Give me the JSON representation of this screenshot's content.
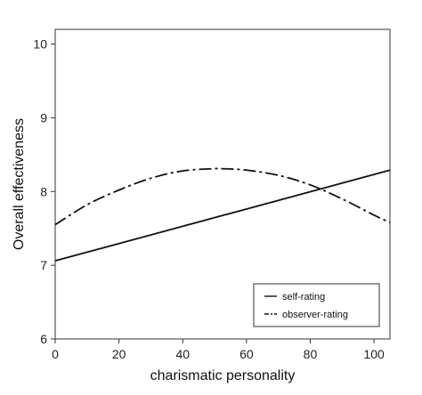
{
  "chart_data": {
    "type": "line",
    "title": "",
    "xlabel": "charismatic personality",
    "ylabel": "Overall effectiveness",
    "xlim": [
      0,
      105
    ],
    "ylim": [
      6,
      10.2
    ],
    "xticks": [
      0,
      20,
      40,
      60,
      80,
      100
    ],
    "yticks": [
      6,
      7,
      8,
      9,
      10
    ],
    "grid": false,
    "legend_position": "bottom-right",
    "series": [
      {
        "name": "self-rating",
        "line_style": "solid",
        "color": "#111111",
        "x": [
          0,
          105
        ],
        "y": [
          7.06,
          8.29
        ]
      },
      {
        "name": "observer-rating",
        "line_style": "dash-dot",
        "color": "#111111",
        "x": [
          0,
          10,
          20,
          30,
          40,
          50,
          52.5,
          60,
          70,
          80,
          90,
          100,
          105
        ],
        "y": [
          7.55,
          7.82,
          8.02,
          8.18,
          8.28,
          8.31,
          8.31,
          8.29,
          8.22,
          8.09,
          7.9,
          7.68,
          7.58
        ]
      }
    ]
  }
}
